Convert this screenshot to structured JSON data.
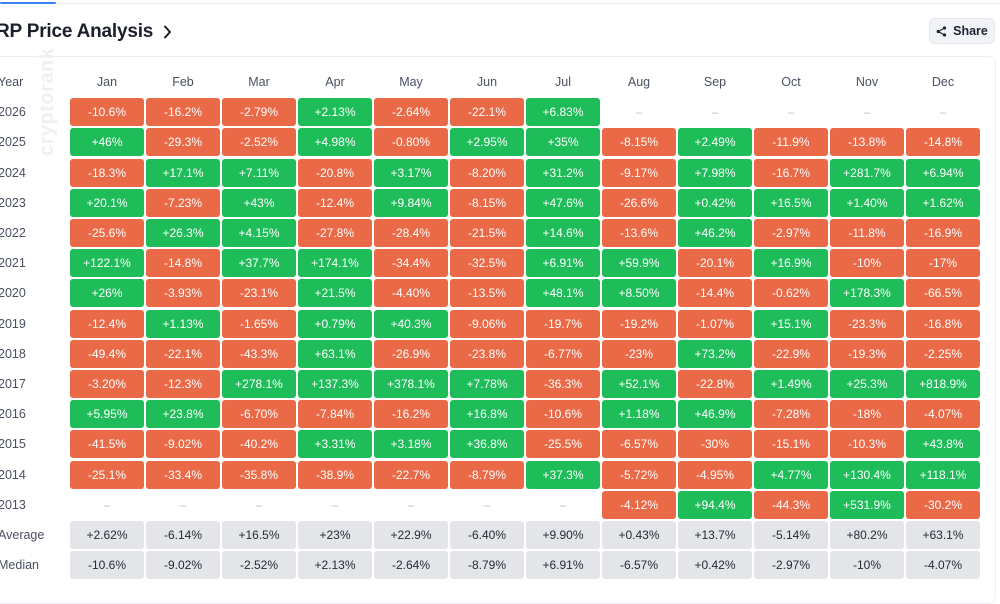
{
  "header": {
    "title": "RP Price Analysis",
    "share_label": "Share"
  },
  "watermark": "cryptorank",
  "table": {
    "year_header": "Year",
    "months": [
      "Jan",
      "Feb",
      "Mar",
      "Apr",
      "May",
      "Jun",
      "Jul",
      "Aug",
      "Sep",
      "Oct",
      "Nov",
      "Dec"
    ],
    "rows": [
      {
        "year": "2026",
        "cells": [
          "-10.6%",
          "-16.2%",
          "-2.79%",
          "+2.13%",
          "-2.64%",
          "-22.1%",
          "+6.83%",
          "–",
          "–",
          "–",
          "–",
          "–"
        ]
      },
      {
        "year": "2025",
        "cells": [
          "+46%",
          "-29.3%",
          "-2.52%",
          "+4.98%",
          "-0.80%",
          "+2.95%",
          "+35%",
          "-8.15%",
          "+2.49%",
          "-11.9%",
          "-13.8%",
          "-14.8%"
        ]
      },
      {
        "year": "2024",
        "cells": [
          "-18.3%",
          "+17.1%",
          "+7.11%",
          "-20.8%",
          "+3.17%",
          "-8.20%",
          "+31.2%",
          "-9.17%",
          "+7.98%",
          "-16.7%",
          "+281.7%",
          "+6.94%"
        ]
      },
      {
        "year": "2023",
        "cells": [
          "+20.1%",
          "-7.23%",
          "+43%",
          "-12.4%",
          "+9.84%",
          "-8.15%",
          "+47.6%",
          "-26.6%",
          "+0.42%",
          "+16.5%",
          "+1.40%",
          "+1.62%"
        ]
      },
      {
        "year": "2022",
        "cells": [
          "-25.6%",
          "+26.3%",
          "+4.15%",
          "-27.8%",
          "-28.4%",
          "-21.5%",
          "+14.6%",
          "-13.6%",
          "+46.2%",
          "-2.97%",
          "-11.8%",
          "-16.9%"
        ]
      },
      {
        "year": "2021",
        "cells": [
          "+122.1%",
          "-14.8%",
          "+37.7%",
          "+174.1%",
          "-34.4%",
          "-32.5%",
          "+6.91%",
          "+59.9%",
          "-20.1%",
          "+16.9%",
          "-10%",
          "-17%"
        ]
      },
      {
        "year": "2020",
        "cells": [
          "+26%",
          "-3.93%",
          "-23.1%",
          "+21.5%",
          "-4.40%",
          "-13.5%",
          "+48.1%",
          "+8.50%",
          "-14.4%",
          "-0.62%",
          "+178.3%",
          "-66.5%"
        ]
      },
      {
        "year": "2019",
        "cells": [
          "-12.4%",
          "+1.13%",
          "-1.65%",
          "+0.79%",
          "+40.3%",
          "-9.06%",
          "-19.7%",
          "-19.2%",
          "-1.07%",
          "+15.1%",
          "-23.3%",
          "-16.8%"
        ]
      },
      {
        "year": "2018",
        "cells": [
          "-49.4%",
          "-22.1%",
          "-43.3%",
          "+63.1%",
          "-26.9%",
          "-23.8%",
          "-6.77%",
          "-23%",
          "+73.2%",
          "-22.9%",
          "-19.3%",
          "-2.25%"
        ]
      },
      {
        "year": "2017",
        "cells": [
          "-3.20%",
          "-12.3%",
          "+278.1%",
          "+137.3%",
          "+378.1%",
          "+7.78%",
          "-36.3%",
          "+52.1%",
          "-22.8%",
          "+1.49%",
          "+25.3%",
          "+818.9%"
        ]
      },
      {
        "year": "2016",
        "cells": [
          "+5.95%",
          "+23.8%",
          "-6.70%",
          "-7.84%",
          "-16.2%",
          "+16.8%",
          "-10.6%",
          "+1.18%",
          "+46.9%",
          "-7.28%",
          "-18%",
          "-4.07%"
        ]
      },
      {
        "year": "2015",
        "cells": [
          "-41.5%",
          "-9.02%",
          "-40.2%",
          "+3.31%",
          "+3.18%",
          "+36.8%",
          "-25.5%",
          "-6.57%",
          "-30%",
          "-15.1%",
          "-10.3%",
          "+43.8%"
        ]
      },
      {
        "year": "2014",
        "cells": [
          "-25.1%",
          "-33.4%",
          "-35.8%",
          "-38.9%",
          "-22.7%",
          "-8.79%",
          "+37.3%",
          "-5.72%",
          "-4.95%",
          "+4.77%",
          "+130.4%",
          "+118.1%"
        ]
      },
      {
        "year": "2013",
        "cells": [
          "–",
          "–",
          "–",
          "–",
          "–",
          "–",
          "–",
          "-4.12%",
          "+94.4%",
          "-44.3%",
          "+531.9%",
          "-30.2%"
        ]
      }
    ],
    "summary": [
      {
        "label": "Average",
        "cells": [
          "+2.62%",
          "-6.14%",
          "+16.5%",
          "+23%",
          "+22.9%",
          "-6.40%",
          "+9.90%",
          "+0.43%",
          "+13.7%",
          "-5.14%",
          "+80.2%",
          "+63.1%"
        ]
      },
      {
        "label": "Median",
        "cells": [
          "-10.6%",
          "-9.02%",
          "-2.52%",
          "+2.13%",
          "-2.64%",
          "-8.79%",
          "+6.91%",
          "-6.57%",
          "+0.42%",
          "-2.97%",
          "-10%",
          "-4.07%"
        ]
      }
    ]
  },
  "colors": {
    "positive": "#1fbd5a",
    "negative": "#ea6a48",
    "summary": "#e3e5e9"
  },
  "icons": {
    "title_chevron": "chevron-right-icon",
    "share": "share-icon"
  }
}
